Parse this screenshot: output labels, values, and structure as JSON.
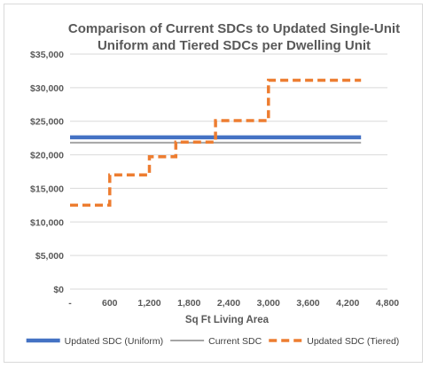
{
  "chart_data": {
    "type": "line",
    "title_lines": [
      "Comparison of Current SDCs to Updated Single-Unit",
      "Uniform and Tiered SDCs per Dwelling Unit"
    ],
    "xlabel": "Sq Ft Living Area",
    "ylabel": "",
    "xlim": [
      0,
      4800
    ],
    "ylim": [
      0,
      35000
    ],
    "x_ticks": [
      0,
      600,
      1200,
      1800,
      2400,
      3000,
      3600,
      4200,
      4800
    ],
    "x_tick_labels": [
      "-",
      "600",
      "1,200",
      "1,800",
      "2,400",
      "3,000",
      "3,600",
      "4,200",
      "4,800"
    ],
    "y_ticks": [
      0,
      5000,
      10000,
      15000,
      20000,
      25000,
      30000,
      35000
    ],
    "y_tick_labels": [
      "$0",
      "$5,000",
      "$10,000",
      "$15,000",
      "$20,000",
      "$25,000",
      "$30,000",
      "$35,000"
    ],
    "grid": "horizontal",
    "legend_position": "bottom",
    "series": [
      {
        "name": "Updated SDC (Uniform)",
        "color": "#4472C4",
        "style": "solid-thick",
        "x": [
          0,
          4400
        ],
        "y": [
          22600,
          22600
        ]
      },
      {
        "name": "Current SDC",
        "color": "#A5A5A5",
        "style": "solid-thin",
        "x": [
          0,
          4400
        ],
        "y": [
          21800,
          21800
        ]
      },
      {
        "name": "Updated SDC (Tiered)",
        "color": "#ED7D31",
        "style": "dashed",
        "x": [
          0,
          600,
          600,
          1200,
          1200,
          1600,
          1600,
          2200,
          2200,
          3000,
          3000,
          4400
        ],
        "y": [
          12500,
          12500,
          17000,
          17000,
          19700,
          19700,
          21900,
          21900,
          25100,
          25100,
          31100,
          31100
        ]
      }
    ]
  }
}
